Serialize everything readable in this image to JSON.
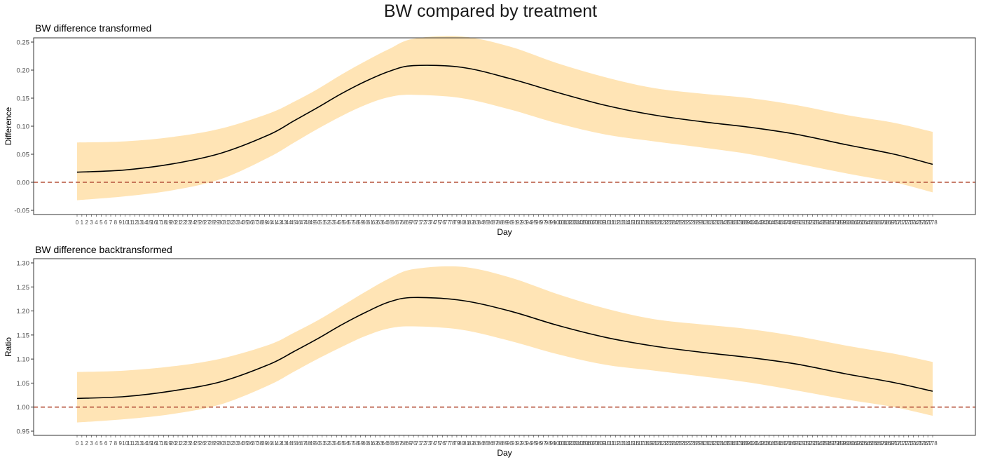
{
  "title": "BW compared by treatment",
  "colors": {
    "ribbon": "#ffe4b5",
    "line": "#000000",
    "reference": "#b5533c",
    "panel_border": "#333333"
  },
  "chart_data": [
    {
      "type": "area",
      "title": "BW difference transformed",
      "xlabel": "Day",
      "ylabel": "Difference",
      "grid": false,
      "legend": "none",
      "xlim": [
        0,
        178
      ],
      "ylim": [
        -0.05,
        0.25
      ],
      "yticks": [
        -0.05,
        0.0,
        0.05,
        0.1,
        0.15,
        0.2,
        0.25
      ],
      "ytick_labels": [
        "-0.05",
        "0.00",
        "0.05",
        "0.10",
        "0.15",
        "0.20",
        "0.25"
      ],
      "reference_line": 0.0,
      "x": [
        0,
        10,
        20,
        30,
        40,
        45,
        50,
        55,
        60,
        65,
        70,
        80,
        90,
        100,
        110,
        120,
        130,
        140,
        150,
        160,
        170,
        178
      ],
      "series": [
        {
          "role": "estimate",
          "values": [
            0.018,
            0.022,
            0.033,
            0.052,
            0.085,
            0.109,
            0.133,
            0.158,
            0.18,
            0.198,
            0.208,
            0.205,
            0.185,
            0.16,
            0.137,
            0.12,
            0.108,
            0.098,
            0.085,
            0.067,
            0.05,
            0.032
          ]
        },
        {
          "role": "upper",
          "values": [
            0.071,
            0.073,
            0.081,
            0.096,
            0.123,
            0.143,
            0.166,
            0.192,
            0.216,
            0.238,
            0.256,
            0.26,
            0.242,
            0.212,
            0.187,
            0.168,
            0.158,
            0.15,
            0.137,
            0.12,
            0.106,
            0.09
          ]
        },
        {
          "role": "lower",
          "values": [
            -0.032,
            -0.025,
            -0.014,
            0.006,
            0.045,
            0.07,
            0.095,
            0.118,
            0.138,
            0.152,
            0.156,
            0.15,
            0.13,
            0.105,
            0.085,
            0.073,
            0.062,
            0.05,
            0.033,
            0.016,
            0.0,
            -0.018
          ]
        }
      ]
    },
    {
      "type": "area",
      "title": "BW difference backtransformed",
      "xlabel": "Day",
      "ylabel": "Ratio",
      "grid": false,
      "legend": "none",
      "xlim": [
        0,
        178
      ],
      "ylim": [
        0.95,
        1.3
      ],
      "yticks": [
        0.95,
        1.0,
        1.05,
        1.1,
        1.15,
        1.2,
        1.25,
        1.3
      ],
      "ytick_labels": [
        "0.95",
        "1.00",
        "1.05",
        "1.10",
        "1.15",
        "1.20",
        "1.25",
        "1.30"
      ],
      "reference_line": 1.0,
      "x": [
        0,
        10,
        20,
        30,
        40,
        45,
        50,
        55,
        60,
        65,
        70,
        80,
        90,
        100,
        110,
        120,
        130,
        140,
        150,
        160,
        170,
        178
      ],
      "series": [
        {
          "role": "estimate",
          "values": [
            1.018,
            1.022,
            1.034,
            1.053,
            1.089,
            1.115,
            1.142,
            1.171,
            1.197,
            1.219,
            1.228,
            1.222,
            1.2,
            1.17,
            1.145,
            1.127,
            1.114,
            1.103,
            1.089,
            1.069,
            1.051,
            1.033
          ]
        },
        {
          "role": "upper",
          "values": [
            1.073,
            1.076,
            1.085,
            1.101,
            1.13,
            1.154,
            1.18,
            1.21,
            1.24,
            1.268,
            1.287,
            1.292,
            1.27,
            1.235,
            1.205,
            1.183,
            1.172,
            1.162,
            1.147,
            1.128,
            1.111,
            1.094
          ]
        },
        {
          "role": "lower",
          "values": [
            0.968,
            0.975,
            0.986,
            1.006,
            1.046,
            1.073,
            1.1,
            1.125,
            1.148,
            1.164,
            1.168,
            1.161,
            1.138,
            1.11,
            1.088,
            1.076,
            1.064,
            1.051,
            1.034,
            1.016,
            1.0,
            0.982
          ]
        }
      ]
    }
  ]
}
